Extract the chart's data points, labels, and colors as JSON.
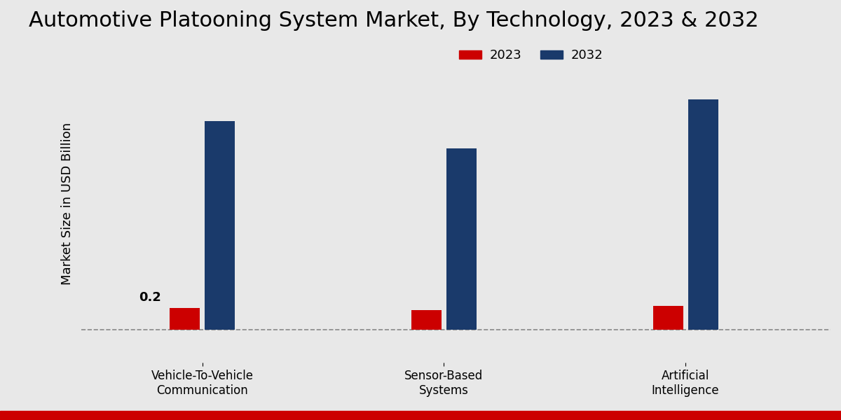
{
  "title": "Automotive Platooning System Market, By Technology, 2023 & 2032",
  "ylabel": "Market Size in USD Billion",
  "categories": [
    "Vehicle-To-Vehicle\nCommunication",
    "Sensor-Based\nSystems",
    "Artificial\nIntelligence"
  ],
  "values_2023": [
    0.2,
    0.18,
    0.22
  ],
  "values_2032": [
    1.9,
    1.65,
    2.1
  ],
  "color_2023": "#cc0000",
  "color_2032": "#1a3a6b",
  "annotation_text": "0.2",
  "annotation_category_idx": 0,
  "background_color_light": "#f0f0f0",
  "background_color_dark": "#d0d0d0",
  "dashed_line_y": 0.0,
  "ylim": [
    -0.3,
    2.6
  ],
  "legend_labels": [
    "2023",
    "2032"
  ],
  "bar_width": 0.25,
  "group_positions": [
    1.0,
    3.0,
    5.0
  ],
  "xlim": [
    0.0,
    6.2
  ],
  "title_fontsize": 22,
  "ylabel_fontsize": 13,
  "tick_fontsize": 12,
  "legend_fontsize": 13,
  "annotation_fontsize": 13,
  "red_bar_color": "#cc0000",
  "bottom_bar_color": "#cc0000"
}
